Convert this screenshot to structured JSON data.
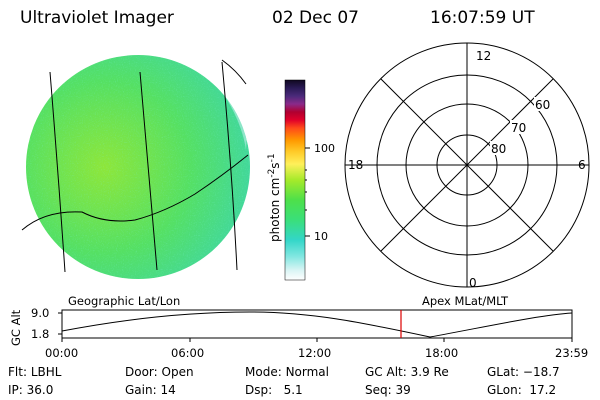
{
  "header": {
    "title": "Ultraviolet Imager",
    "date": "02 Dec 07",
    "time": "16:07:59 UT"
  },
  "colorbar": {
    "label_main": "photon cm",
    "label_sup1": "-2",
    "label_s": "s",
    "label_sup2": "-1",
    "tick_high": "100",
    "tick_low": "10"
  },
  "polar_plot": {
    "mlt_top": "12",
    "mlt_left": "18",
    "mlt_right": "6",
    "mlt_bottom": "0",
    "lat_60": "60",
    "lat_70": "70",
    "lat_80": "80"
  },
  "timeline": {
    "left_title": "Geographic Lat/Lon",
    "right_title": "Apex MLat/MLT",
    "ylabel": "GC Alt",
    "y_top": "9.0",
    "y_bottom": "1.8",
    "ticks": [
      "00:00",
      "06:00",
      "12:00",
      "18:00",
      "23:59"
    ],
    "marker_color": "#dd0000"
  },
  "info": {
    "flt_label": "Flt:",
    "flt_value": "LBHL",
    "ip_label": "IP:",
    "ip_value": "36.0",
    "door_label": "Door:",
    "door_value": "Open",
    "gain_label": "Gain:",
    "gain_value": "14",
    "mode_label": "Mode:",
    "mode_value": "Normal",
    "dsp_label": "Dsp:",
    "dsp_value": "5.1",
    "gcalt_label": "GC Alt:",
    "gcalt_value": "3.9 Re",
    "seq_label": "Seq:",
    "seq_value": "39",
    "glat_label": "GLat:",
    "glat_value": "−18.7",
    "glon_label": "GLon:",
    "glon_value": "17.2"
  }
}
